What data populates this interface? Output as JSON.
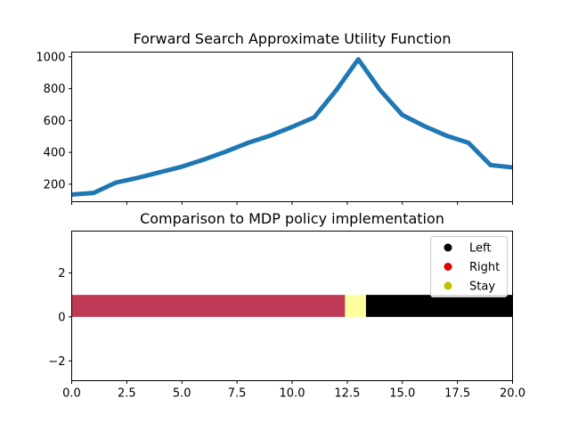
{
  "chart_data": [
    {
      "type": "line",
      "title": "Forward Search Approximate Utility Function",
      "xlabel": "",
      "ylabel": "",
      "xlim": [
        0,
        20
      ],
      "ylim": [
        90,
        1030
      ],
      "yticks": [
        "200",
        "400",
        "600",
        "800",
        "1000"
      ],
      "ytick_values": [
        200,
        400,
        600,
        800,
        1000
      ],
      "xtick_values": [
        0,
        2.5,
        5,
        7.5,
        10,
        12.5,
        15,
        17.5,
        20
      ],
      "grid": false,
      "series": [
        {
          "color": "#1f77b4",
          "x": [
            0,
            1,
            2,
            3,
            4,
            5,
            6,
            7,
            8,
            9,
            10,
            11,
            12,
            13,
            14,
            15,
            16,
            17,
            18,
            19,
            20
          ],
          "y": [
            135,
            145,
            210,
            240,
            275,
            310,
            355,
            405,
            460,
            505,
            560,
            620,
            790,
            985,
            790,
            635,
            565,
            505,
            460,
            320,
            305
          ]
        }
      ]
    },
    {
      "type": "bar",
      "title": "Comparison to MDP policy implementation",
      "xlabel": "",
      "ylabel": "",
      "xlim": [
        0,
        20
      ],
      "ylim": [
        -2.9,
        3.9
      ],
      "xticks": [
        "0.0",
        "2.5",
        "5.0",
        "7.5",
        "10.0",
        "12.5",
        "15.0",
        "17.5",
        "20.0"
      ],
      "xtick_values": [
        0,
        2.5,
        5,
        7.5,
        10,
        12.5,
        15,
        17.5,
        20
      ],
      "yticks": [
        "−2",
        "0",
        "2"
      ],
      "ytick_values": [
        -2,
        0,
        2
      ],
      "grid": false,
      "segments": [
        {
          "action": "Right",
          "x_start": 0,
          "x_end": 12.4,
          "y_bottom": 0,
          "y_top": 1,
          "color": "#bf3a55"
        },
        {
          "action": "Stay",
          "x_start": 12.4,
          "x_end": 13.35,
          "y_bottom": 0,
          "y_top": 1,
          "color": "#fdfe9d"
        },
        {
          "action": "Left",
          "x_start": 13.35,
          "x_end": 20,
          "y_bottom": 0,
          "y_top": 1,
          "color": "#000000"
        }
      ],
      "legend": {
        "placement": "top-right",
        "entries": [
          {
            "label": "Left",
            "color": "#000000"
          },
          {
            "label": "Right",
            "color": "#e00000"
          },
          {
            "label": "Stay",
            "color": "#bfbf00"
          }
        ]
      }
    }
  ]
}
